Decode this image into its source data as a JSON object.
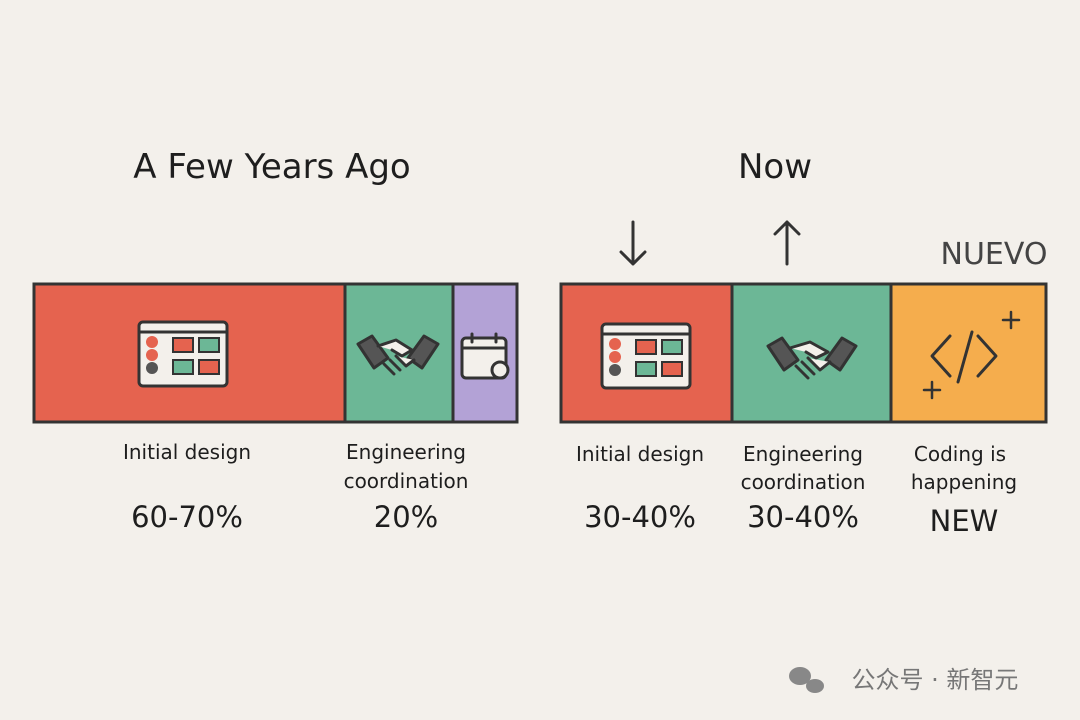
{
  "left": {
    "title": "A Few Years Ago",
    "items": [
      {
        "lines": [
          "Initial design"
        ],
        "share": "60-70%"
      },
      {
        "lines": [
          "Engineering",
          "coordination"
        ],
        "share": "20%"
      }
    ]
  },
  "right": {
    "title": "Now",
    "badge": "NUEVO",
    "items": [
      {
        "lines": [
          "Initial design"
        ],
        "share": "30-40%"
      },
      {
        "lines": [
          "Engineering",
          "coordination"
        ],
        "share": "30-40%"
      },
      {
        "lines": [
          "Coding is",
          "happening"
        ],
        "share": "NEW"
      }
    ]
  },
  "watermark": "公众号 · 新智元"
}
